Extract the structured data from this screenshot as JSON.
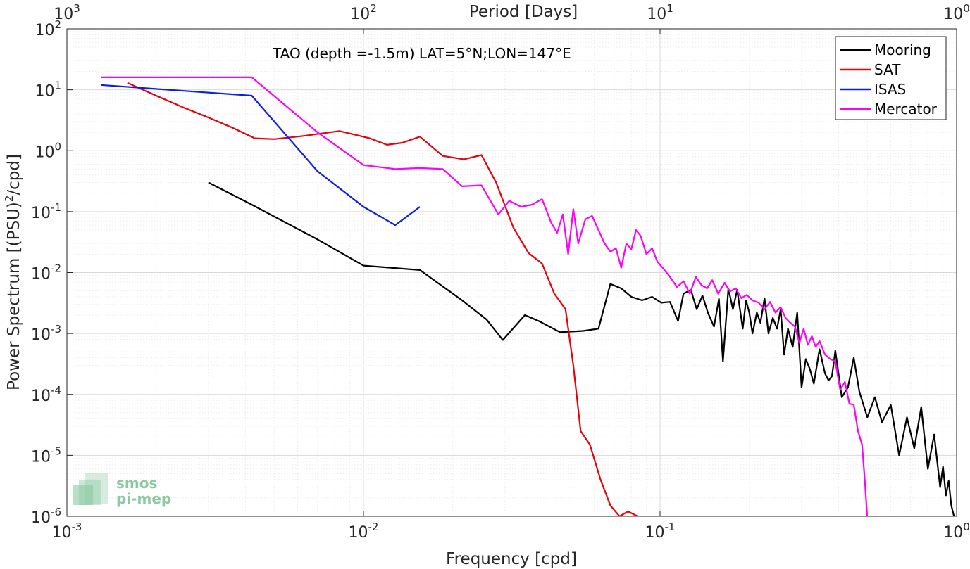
{
  "chart_data": {
    "type": "line",
    "title": "",
    "annotation": "TAO (depth =-1.5m) LAT=5°N;LON=147°E",
    "xlabel": "Frequency [cpd]",
    "ylabel_main": "Power Spectrum [(PSU)",
    "ylabel_sup": "2",
    "ylabel_tail": "/cpd]",
    "top_axis_label": "Period [Days]",
    "x_scale": "log",
    "y_scale": "log",
    "xlim": [
      0.001,
      1
    ],
    "ylim": [
      1e-06,
      100
    ],
    "grid": true,
    "legend_position": "top-right",
    "x_ticks": [
      {
        "base": "10",
        "exp": "-3",
        "value": 0.001
      },
      {
        "base": "10",
        "exp": "-2",
        "value": 0.01
      },
      {
        "base": "10",
        "exp": "-1",
        "value": 0.1
      },
      {
        "base": "10",
        "exp": "0",
        "value": 1
      }
    ],
    "y_ticks": [
      {
        "base": "10",
        "exp": "2",
        "value": 100
      },
      {
        "base": "10",
        "exp": "1",
        "value": 10
      },
      {
        "base": "10",
        "exp": "0",
        "value": 1
      },
      {
        "base": "10",
        "exp": "-1",
        "value": 0.1
      },
      {
        "base": "10",
        "exp": "-2",
        "value": 0.01
      },
      {
        "base": "10",
        "exp": "-3",
        "value": 0.001
      },
      {
        "base": "10",
        "exp": "-4",
        "value": 0.0001
      },
      {
        "base": "10",
        "exp": "-5",
        "value": 1e-05
      },
      {
        "base": "10",
        "exp": "-6",
        "value": 1e-06
      }
    ],
    "top_ticks": [
      {
        "base": "10",
        "exp": "3",
        "freq": 0.001
      },
      {
        "base": "10",
        "exp": "2",
        "freq": 0.01
      },
      {
        "base": "10",
        "exp": "1",
        "freq": 0.1
      },
      {
        "base": "10",
        "exp": "0",
        "freq": 1
      }
    ],
    "series": [
      {
        "name": "Mooring",
        "color": "#000000",
        "x": [
          0.003,
          0.0042,
          0.007,
          0.01,
          0.0155,
          0.0215,
          0.026,
          0.0295,
          0.035,
          0.039,
          0.046,
          0.055,
          0.062,
          0.068,
          0.074,
          0.08,
          0.087,
          0.094,
          0.101,
          0.108,
          0.115,
          0.12,
          0.127,
          0.133,
          0.139,
          0.145,
          0.152,
          0.158,
          0.163,
          0.17,
          0.176,
          0.182,
          0.19,
          0.195,
          0.2,
          0.205,
          0.212,
          0.218,
          0.225,
          0.232,
          0.24,
          0.248,
          0.255,
          0.262,
          0.27,
          0.28,
          0.29,
          0.3,
          0.31,
          0.32,
          0.33,
          0.345,
          0.36,
          0.37,
          0.38,
          0.39,
          0.41,
          0.43,
          0.45,
          0.47,
          0.5,
          0.53,
          0.56,
          0.6,
          0.64,
          0.68,
          0.72,
          0.76,
          0.8,
          0.84,
          0.88,
          0.9,
          0.92,
          0.94,
          0.96,
          0.98
        ],
        "y": [
          0.3,
          0.13,
          0.035,
          0.013,
          0.011,
          0.0035,
          0.0017,
          0.00078,
          0.002,
          0.0016,
          0.00105,
          0.0011,
          0.0012,
          0.0065,
          0.0055,
          0.004,
          0.0035,
          0.004,
          0.0032,
          0.0033,
          0.0016,
          0.0045,
          0.0052,
          0.0025,
          0.0042,
          0.0022,
          0.0013,
          0.0037,
          0.00035,
          0.0055,
          0.0025,
          0.0052,
          0.0012,
          0.0035,
          0.0022,
          0.001,
          0.0022,
          0.0015,
          0.0038,
          0.001,
          0.0018,
          0.0012,
          0.0025,
          0.00045,
          0.0012,
          0.0006,
          0.0022,
          0.00013,
          0.00038,
          0.00026,
          0.00015,
          0.00055,
          0.00022,
          0.00017,
          0.0002,
          0.00052,
          9e-05,
          0.00013,
          0.0004,
          0.00011,
          4.2e-05,
          9e-05,
          3.5e-05,
          6.7e-05,
          1e-05,
          4.2e-05,
          1.3e-05,
          6.2e-05,
          6e-06,
          2.2e-05,
          3e-06,
          6.5e-06,
          2.2e-06,
          3.8e-06,
          1.5e-06,
          1e-06
        ]
      },
      {
        "name": "SAT",
        "color": "#e8000b",
        "x": [
          0.0016,
          0.002,
          0.0025,
          0.003,
          0.0036,
          0.0043,
          0.005,
          0.0063,
          0.0083,
          0.0105,
          0.012,
          0.0135,
          0.0155,
          0.0185,
          0.0218,
          0.025,
          0.028,
          0.032,
          0.036,
          0.04,
          0.044,
          0.048,
          0.051,
          0.054,
          0.058,
          0.063,
          0.068,
          0.073,
          0.078,
          0.084,
          0.09,
          0.095,
          0.1
        ],
        "y": [
          13,
          8,
          5,
          3.5,
          2.4,
          1.6,
          1.55,
          1.75,
          2.1,
          1.6,
          1.25,
          1.35,
          1.7,
          0.82,
          0.72,
          0.85,
          0.3,
          0.055,
          0.021,
          0.014,
          0.0045,
          0.0025,
          0.0003,
          2.5e-05,
          1.5e-05,
          4e-06,
          1.5e-06,
          1e-06,
          1.2e-06,
          1e-06,
          9e-07,
          1e-06,
          9e-07
        ]
      },
      {
        "name": "ISAS",
        "color": "#0b1ee6",
        "x": [
          0.0013,
          0.0042,
          0.007,
          0.01,
          0.0128,
          0.0155
        ],
        "y": [
          12,
          8,
          0.46,
          0.12,
          0.06,
          0.12
        ]
      },
      {
        "name": "Mercator",
        "color": "#ff00ff",
        "x": [
          0.0013,
          0.0042,
          0.007,
          0.01,
          0.0128,
          0.0155,
          0.0185,
          0.0215,
          0.025,
          0.0285,
          0.031,
          0.034,
          0.037,
          0.04,
          0.043,
          0.045,
          0.047,
          0.049,
          0.051,
          0.053,
          0.056,
          0.059,
          0.062,
          0.065,
          0.068,
          0.071,
          0.074,
          0.077,
          0.08,
          0.083,
          0.086,
          0.09,
          0.094,
          0.098,
          0.102,
          0.108,
          0.114,
          0.12,
          0.126,
          0.132,
          0.138,
          0.144,
          0.15,
          0.157,
          0.165,
          0.172,
          0.18,
          0.188,
          0.196,
          0.205,
          0.215,
          0.225,
          0.235,
          0.245,
          0.255,
          0.265,
          0.275,
          0.285,
          0.295,
          0.305,
          0.315,
          0.325,
          0.335,
          0.345,
          0.36,
          0.375,
          0.39,
          0.405,
          0.42,
          0.435,
          0.45,
          0.465,
          0.48,
          0.49,
          0.5
        ],
        "y": [
          16,
          16,
          2,
          0.58,
          0.5,
          0.52,
          0.5,
          0.26,
          0.27,
          0.09,
          0.15,
          0.12,
          0.13,
          0.16,
          0.065,
          0.045,
          0.09,
          0.02,
          0.11,
          0.03,
          0.075,
          0.085,
          0.05,
          0.03,
          0.022,
          0.025,
          0.012,
          0.03,
          0.024,
          0.05,
          0.04,
          0.02,
          0.025,
          0.015,
          0.012,
          0.0085,
          0.0058,
          0.0072,
          0.0045,
          0.0085,
          0.0062,
          0.0055,
          0.0075,
          0.0045,
          0.0068,
          0.0049,
          0.0055,
          0.0038,
          0.0043,
          0.0035,
          0.0032,
          0.0025,
          0.0033,
          0.0022,
          0.0027,
          0.0018,
          0.0015,
          0.0013,
          0.0007,
          0.0012,
          0.00065,
          0.0009,
          0.0006,
          0.00075,
          0.00045,
          0.00038,
          0.00035,
          0.00012,
          0.00016,
          7e-05,
          6.8e-05,
          2.5e-05,
          1.5e-05,
          4e-06,
          9e-07
        ]
      }
    ]
  },
  "logo": {
    "line1": "smos",
    "line2": "pi-mep",
    "color": "#8cc9a3"
  }
}
